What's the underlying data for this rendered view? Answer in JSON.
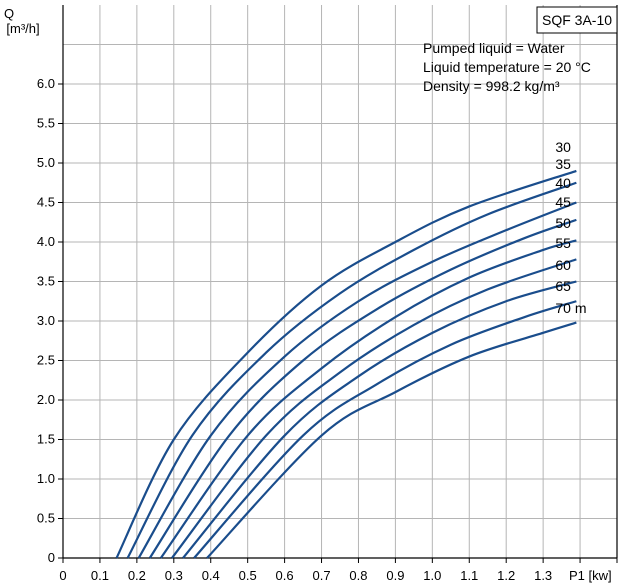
{
  "chart_data": {
    "type": "line",
    "model": "SQF 3A-10",
    "info_lines": [
      "Pumped liquid = Water",
      "Liquid temperature = 20 °C",
      "Density = 998.2 kg/m³"
    ],
    "ylabel_line1": "Q",
    "ylabel_line2": "[m³/h]",
    "xlabel": "P1 [kw]",
    "xlim": [
      0,
      1.5
    ],
    "ylim": [
      0,
      7
    ],
    "x_ticks": [
      "0",
      "0.1",
      "0.2",
      "0.3",
      "0.4",
      "0.5",
      "0.6",
      "0.7",
      "0.8",
      "0.9",
      "1.0",
      "1.1",
      "1.2",
      "1.3"
    ],
    "y_ticks": [
      "0",
      "0.5",
      "1.0",
      "1.5",
      "2.0",
      "2.5",
      "3.0",
      "3.5",
      "4.0",
      "4.5",
      "5.0",
      "5.5",
      "6.0"
    ],
    "grid": true,
    "series": [
      {
        "name": "30",
        "points": [
          [
            0.145,
            0
          ],
          [
            0.3,
            1.5
          ],
          [
            0.5,
            2.6
          ],
          [
            0.7,
            3.45
          ],
          [
            0.9,
            4.0
          ],
          [
            1.1,
            4.45
          ],
          [
            1.39,
            4.9
          ]
        ]
      },
      {
        "name": "35",
        "points": [
          [
            0.175,
            0
          ],
          [
            0.35,
            1.55
          ],
          [
            0.55,
            2.6
          ],
          [
            0.75,
            3.35
          ],
          [
            0.95,
            3.9
          ],
          [
            1.15,
            4.35
          ],
          [
            1.39,
            4.75
          ]
        ]
      },
      {
        "name": "40",
        "points": [
          [
            0.205,
            0
          ],
          [
            0.4,
            1.55
          ],
          [
            0.6,
            2.55
          ],
          [
            0.8,
            3.25
          ],
          [
            1.0,
            3.75
          ],
          [
            1.2,
            4.15
          ],
          [
            1.39,
            4.5
          ]
        ]
      },
      {
        "name": "45",
        "points": [
          [
            0.235,
            0
          ],
          [
            0.45,
            1.55
          ],
          [
            0.65,
            2.5
          ],
          [
            0.85,
            3.15
          ],
          [
            1.05,
            3.65
          ],
          [
            1.25,
            4.05
          ],
          [
            1.39,
            4.28
          ]
        ]
      },
      {
        "name": "50",
        "points": [
          [
            0.265,
            0
          ],
          [
            0.5,
            1.55
          ],
          [
            0.7,
            2.4
          ],
          [
            0.9,
            3.05
          ],
          [
            1.1,
            3.55
          ],
          [
            1.3,
            3.9
          ],
          [
            1.39,
            4.02
          ]
        ]
      },
      {
        "name": "55",
        "points": [
          [
            0.295,
            0
          ],
          [
            0.55,
            1.55
          ],
          [
            0.75,
            2.35
          ],
          [
            0.95,
            2.95
          ],
          [
            1.15,
            3.4
          ],
          [
            1.39,
            3.78
          ]
        ]
      },
      {
        "name": "60",
        "points": [
          [
            0.325,
            0
          ],
          [
            0.6,
            1.55
          ],
          [
            0.8,
            2.3
          ],
          [
            1.0,
            2.85
          ],
          [
            1.2,
            3.25
          ],
          [
            1.39,
            3.5
          ]
        ]
      },
      {
        "name": "65",
        "points": [
          [
            0.355,
            0
          ],
          [
            0.65,
            1.55
          ],
          [
            0.85,
            2.2
          ],
          [
            1.05,
            2.7
          ],
          [
            1.25,
            3.05
          ],
          [
            1.39,
            3.25
          ]
        ]
      },
      {
        "name": "70 m",
        "points": [
          [
            0.39,
            0
          ],
          [
            0.7,
            1.55
          ],
          [
            0.9,
            2.1
          ],
          [
            1.1,
            2.55
          ],
          [
            1.3,
            2.85
          ],
          [
            1.39,
            2.98
          ]
        ]
      }
    ]
  }
}
